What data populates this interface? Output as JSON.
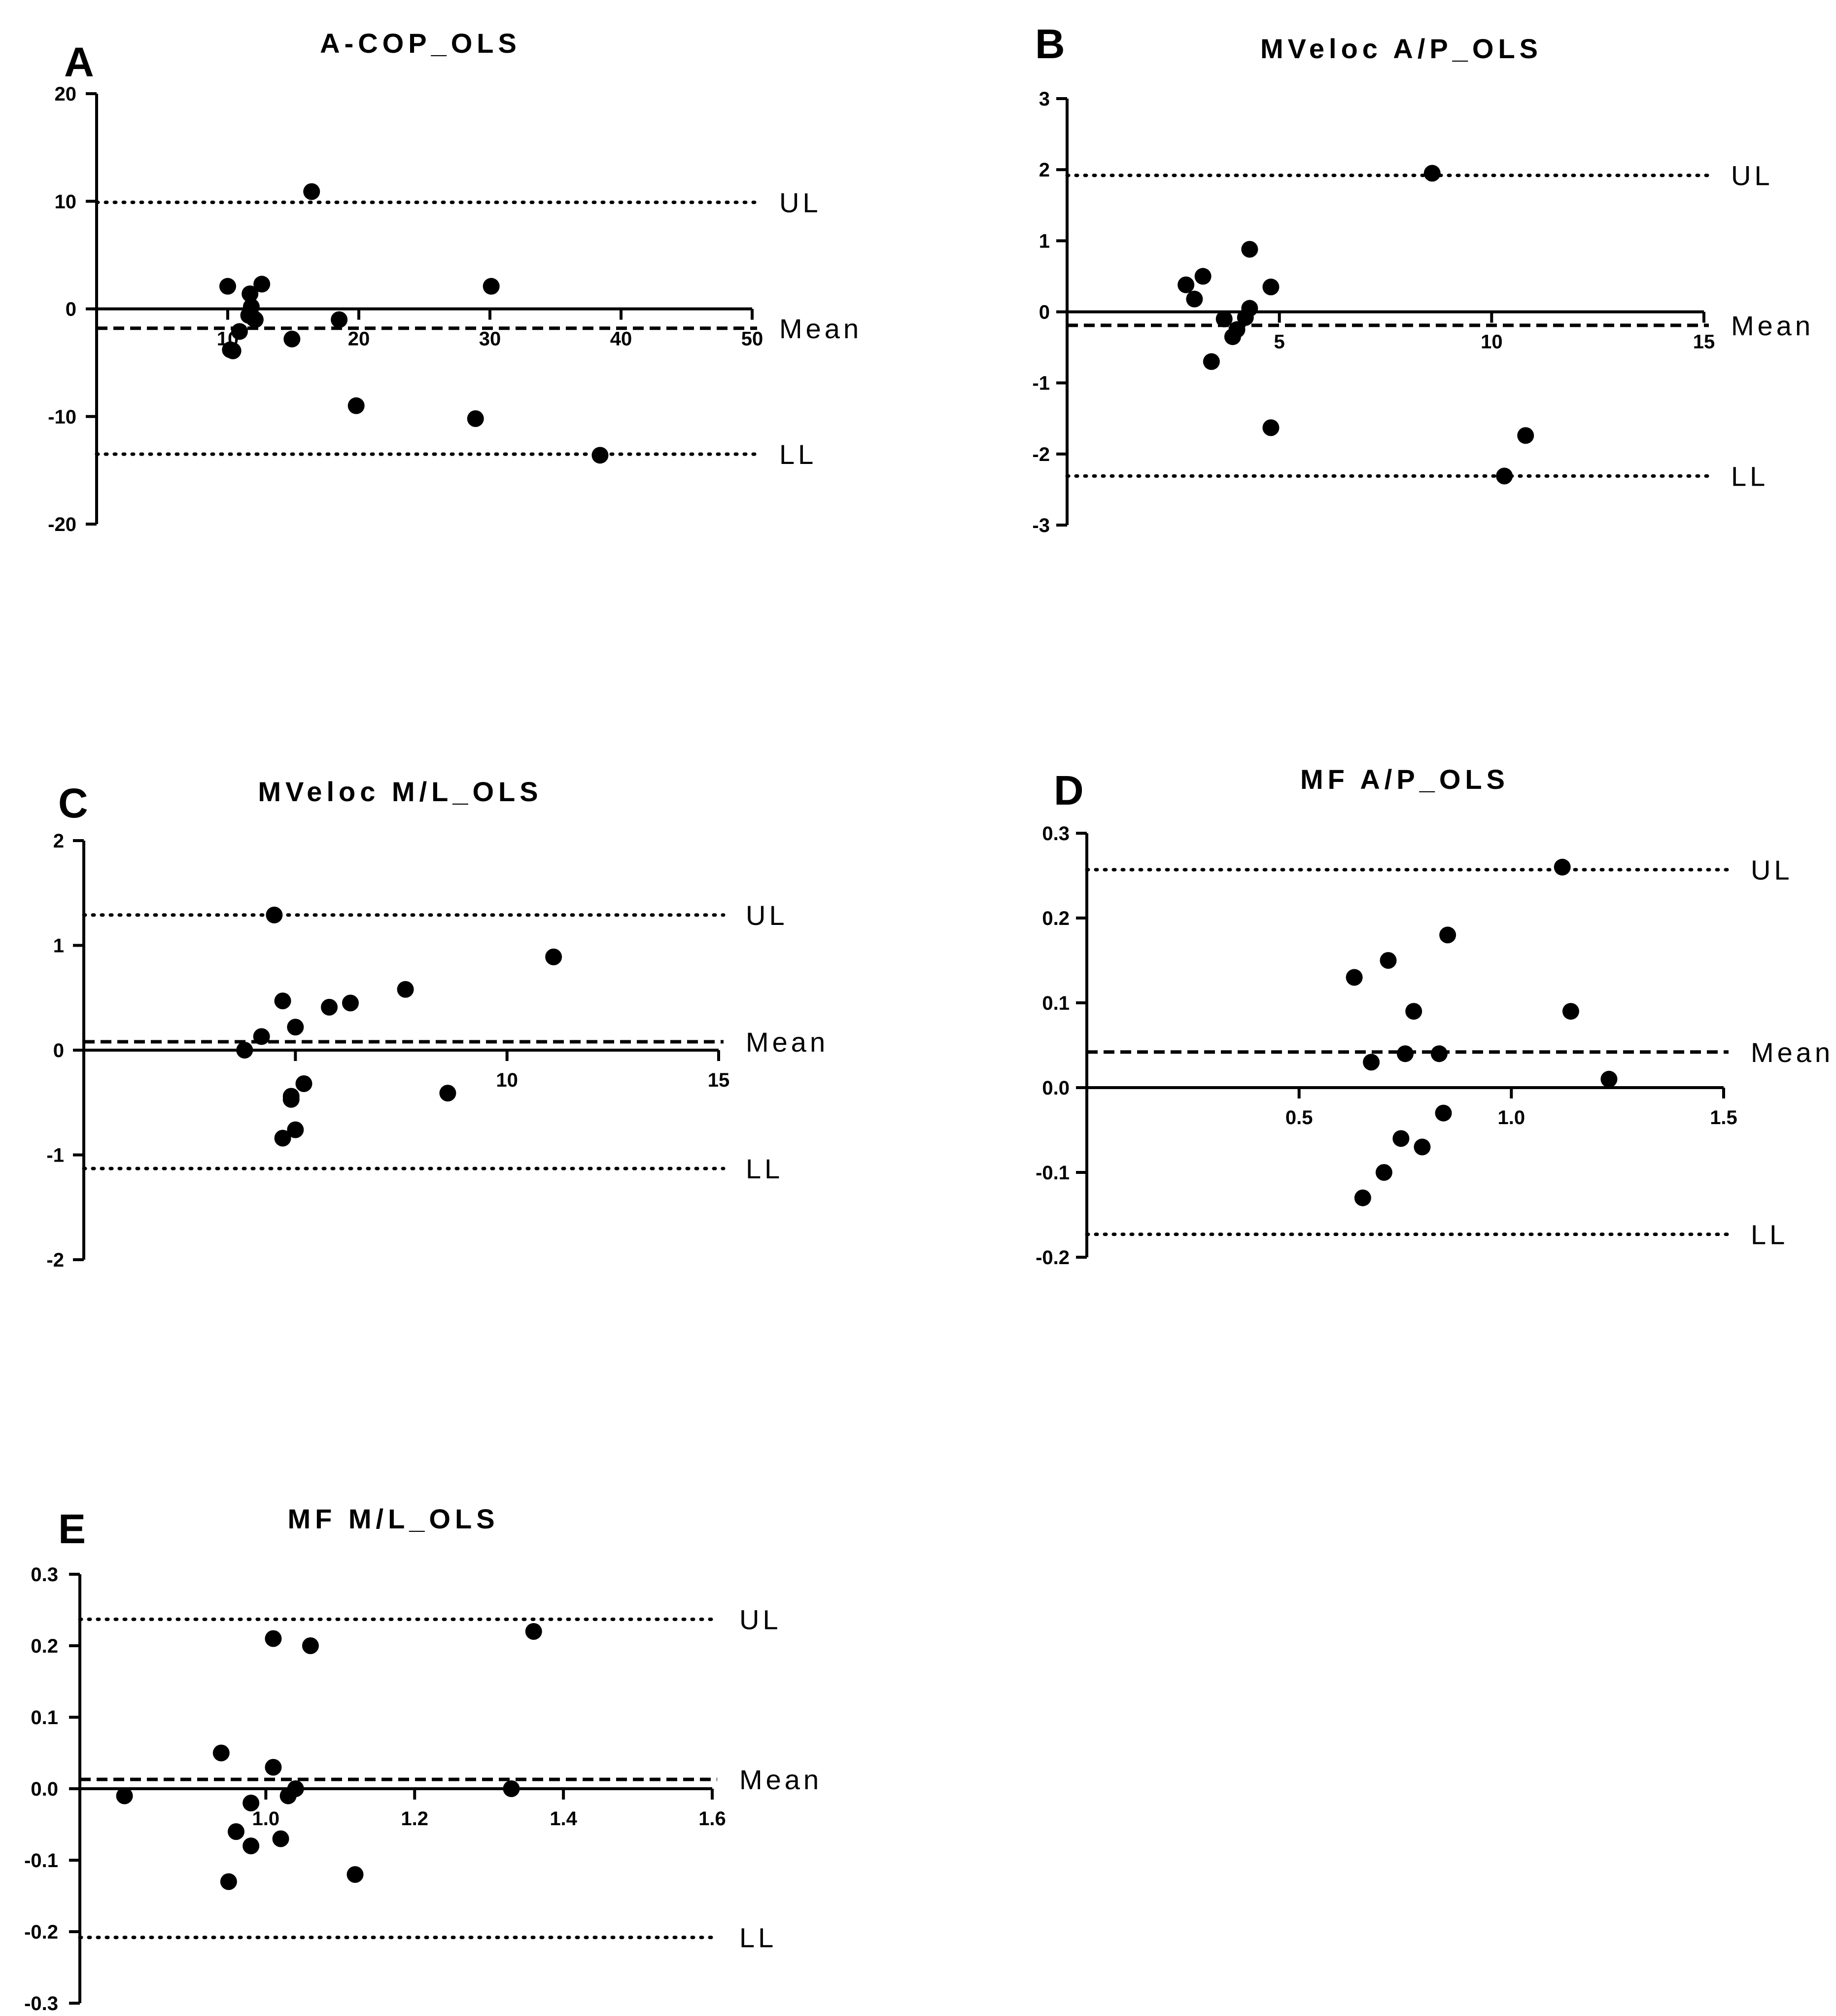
{
  "chart_data": [
    {
      "panel": "A",
      "type": "scatter",
      "title": "A-COP_OLS",
      "xlabel": "",
      "ylabel": "",
      "xlim": [
        0,
        50
      ],
      "ylim": [
        -20,
        20
      ],
      "xticks": [
        10,
        20,
        30,
        40,
        50
      ],
      "xtick_labels": [
        "10",
        "20",
        "30",
        "40",
        "50"
      ],
      "yticks": [
        -20,
        -10,
        0,
        10,
        20
      ],
      "ytick_labels": [
        "-20",
        "-10",
        "0",
        "10",
        "20"
      ],
      "x_minor_ticks": [],
      "ref_lines": [
        {
          "label": "UL",
          "value": 9.9,
          "style": "dotted"
        },
        {
          "label": "Mean",
          "value": -1.8,
          "style": "dashed"
        },
        {
          "label": "LL",
          "value": -13.5,
          "style": "dotted"
        }
      ],
      "points": [
        {
          "x": 10.0,
          "y": 2.1
        },
        {
          "x": 10.2,
          "y": -3.8
        },
        {
          "x": 10.4,
          "y": -3.9
        },
        {
          "x": 10.9,
          "y": -2.1
        },
        {
          "x": 11.7,
          "y": 1.4
        },
        {
          "x": 11.8,
          "y": 0.2
        },
        {
          "x": 11.6,
          "y": -0.6
        },
        {
          "x": 12.0,
          "y": -0.9
        },
        {
          "x": 12.1,
          "y": -1.0
        },
        {
          "x": 12.6,
          "y": 2.3
        },
        {
          "x": 14.9,
          "y": -2.8
        },
        {
          "x": 16.4,
          "y": 10.9
        },
        {
          "x": 18.5,
          "y": -1.0
        },
        {
          "x": 19.8,
          "y": -9.0
        },
        {
          "x": 28.9,
          "y": -10.2
        },
        {
          "x": 30.1,
          "y": 2.1
        },
        {
          "x": 38.4,
          "y": -13.6
        }
      ]
    },
    {
      "panel": "B",
      "type": "scatter",
      "title": "MVeloc A/P_OLS",
      "xlabel": "",
      "ylabel": "",
      "xlim": [
        0,
        15
      ],
      "ylim": [
        -3,
        3
      ],
      "xticks": [
        5,
        10,
        15
      ],
      "xtick_labels": [
        "5",
        "10",
        "15"
      ],
      "yticks": [
        -3,
        -2,
        -1,
        0,
        1,
        2,
        3
      ],
      "ytick_labels": [
        "-3",
        "-2",
        "-1",
        "0",
        "1",
        "2",
        "3"
      ],
      "x_minor_ticks": [],
      "ref_lines": [
        {
          "label": "UL",
          "value": 1.92,
          "style": "dotted"
        },
        {
          "label": "Mean",
          "value": -0.19,
          "style": "dashed"
        },
        {
          "label": "LL",
          "value": -2.31,
          "style": "dotted"
        }
      ],
      "points": [
        {
          "x": 2.8,
          "y": 0.38
        },
        {
          "x": 3.0,
          "y": 0.18
        },
        {
          "x": 3.2,
          "y": 0.5
        },
        {
          "x": 3.4,
          "y": -0.7
        },
        {
          "x": 3.7,
          "y": -0.1
        },
        {
          "x": 3.9,
          "y": -0.35
        },
        {
          "x": 4.0,
          "y": -0.25
        },
        {
          "x": 4.2,
          "y": -0.08
        },
        {
          "x": 4.3,
          "y": 0.88
        },
        {
          "x": 4.3,
          "y": 0.05
        },
        {
          "x": 4.8,
          "y": 0.35
        },
        {
          "x": 4.8,
          "y": -1.63
        },
        {
          "x": 8.6,
          "y": 1.95
        },
        {
          "x": 10.3,
          "y": -2.31
        },
        {
          "x": 10.8,
          "y": -1.74
        }
      ]
    },
    {
      "panel": "C",
      "type": "scatter",
      "title": "MVeloc M/L_OLS",
      "xlabel": "",
      "ylabel": "",
      "xlim": [
        0,
        15
      ],
      "ylim": [
        -2,
        2
      ],
      "xticks": [
        10,
        15
      ],
      "xtick_labels": [
        "10",
        "15"
      ],
      "yticks": [
        -2,
        -1,
        0,
        1,
        2
      ],
      "ytick_labels": [
        "-2",
        "-1",
        "0",
        "1",
        "2"
      ],
      "x_minor_ticks": [
        5
      ],
      "ref_lines": [
        {
          "label": "UL",
          "value": 1.29,
          "style": "dotted"
        },
        {
          "label": "Mean",
          "value": 0.08,
          "style": "dashed"
        },
        {
          "label": "LL",
          "value": -1.13,
          "style": "dotted"
        }
      ],
      "points": [
        {
          "x": 3.8,
          "y": 0.0
        },
        {
          "x": 4.2,
          "y": 0.13
        },
        {
          "x": 4.5,
          "y": 1.29
        },
        {
          "x": 4.7,
          "y": 0.47
        },
        {
          "x": 4.7,
          "y": -0.84
        },
        {
          "x": 4.9,
          "y": -0.44
        },
        {
          "x": 4.9,
          "y": -0.47
        },
        {
          "x": 5.0,
          "y": -0.76
        },
        {
          "x": 5.0,
          "y": 0.22
        },
        {
          "x": 5.2,
          "y": -0.32
        },
        {
          "x": 5.8,
          "y": 0.41
        },
        {
          "x": 6.3,
          "y": 0.45
        },
        {
          "x": 7.6,
          "y": 0.58
        },
        {
          "x": 8.6,
          "y": -0.41
        },
        {
          "x": 11.1,
          "y": 0.89
        }
      ]
    },
    {
      "panel": "D",
      "type": "scatter",
      "title": "MF A/P_OLS",
      "xlabel": "",
      "ylabel": "",
      "xlim": [
        0,
        1.5
      ],
      "ylim": [
        -0.2,
        0.3
      ],
      "xticks": [
        0.5,
        1.0,
        1.5
      ],
      "xtick_labels": [
        "0.5",
        "1.0",
        "1.5"
      ],
      "yticks": [
        -0.2,
        -0.1,
        0.0,
        0.1,
        0.2,
        0.3
      ],
      "ytick_labels": [
        "-0.2",
        "-0.1",
        "0.0",
        "0.1",
        "0.2",
        "0.3"
      ],
      "x_minor_ticks": [],
      "ref_lines": [
        {
          "label": "UL",
          "value": 0.257,
          "style": "dotted"
        },
        {
          "label": "Mean",
          "value": 0.042,
          "style": "dashed"
        },
        {
          "label": "LL",
          "value": -0.173,
          "style": "dotted"
        }
      ],
      "points": [
        {
          "x": 0.63,
          "y": 0.13
        },
        {
          "x": 0.65,
          "y": -0.13
        },
        {
          "x": 0.67,
          "y": 0.03
        },
        {
          "x": 0.7,
          "y": -0.1
        },
        {
          "x": 0.71,
          "y": 0.15
        },
        {
          "x": 0.74,
          "y": -0.06
        },
        {
          "x": 0.75,
          "y": 0.04
        },
        {
          "x": 0.77,
          "y": 0.09
        },
        {
          "x": 0.79,
          "y": -0.07
        },
        {
          "x": 0.83,
          "y": 0.04
        },
        {
          "x": 0.84,
          "y": -0.03
        },
        {
          "x": 0.85,
          "y": 0.18
        },
        {
          "x": 1.12,
          "y": 0.26
        },
        {
          "x": 1.14,
          "y": 0.09
        },
        {
          "x": 1.23,
          "y": 0.01
        }
      ]
    },
    {
      "panel": "E",
      "type": "scatter",
      "title": "MF M/L_OLS",
      "xlabel": "",
      "ylabel": "",
      "xlim": [
        0.75,
        1.6
      ],
      "ylim": [
        -0.3,
        0.3
      ],
      "xticks": [
        1.0,
        1.2,
        1.4,
        1.6
      ],
      "xtick_labels": [
        "1.0",
        "1.2",
        "1.4",
        "1.6"
      ],
      "yticks": [
        -0.3,
        -0.2,
        -0.1,
        0.0,
        0.1,
        0.2,
        0.3
      ],
      "ytick_labels": [
        "-0.3",
        "-0.2",
        "-0.1",
        "0.0",
        "0.1",
        "0.2",
        "0.3"
      ],
      "x_minor_ticks": [],
      "ref_lines": [
        {
          "label": "UL",
          "value": 0.237,
          "style": "dotted"
        },
        {
          "label": "Mean",
          "value": 0.013,
          "style": "dashed"
        },
        {
          "label": "LL",
          "value": -0.208,
          "style": "dotted"
        }
      ],
      "points": [
        {
          "x": 0.81,
          "y": -0.01
        },
        {
          "x": 0.94,
          "y": 0.05
        },
        {
          "x": 0.95,
          "y": -0.13
        },
        {
          "x": 0.96,
          "y": -0.06
        },
        {
          "x": 0.98,
          "y": -0.02
        },
        {
          "x": 0.98,
          "y": -0.08
        },
        {
          "x": 1.01,
          "y": 0.21
        },
        {
          "x": 1.01,
          "y": 0.03
        },
        {
          "x": 1.02,
          "y": -0.07
        },
        {
          "x": 1.03,
          "y": -0.01
        },
        {
          "x": 1.04,
          "y": 0.0
        },
        {
          "x": 1.06,
          "y": 0.2
        },
        {
          "x": 1.12,
          "y": -0.12
        },
        {
          "x": 1.33,
          "y": 0.0
        },
        {
          "x": 1.36,
          "y": 0.22
        }
      ]
    }
  ]
}
